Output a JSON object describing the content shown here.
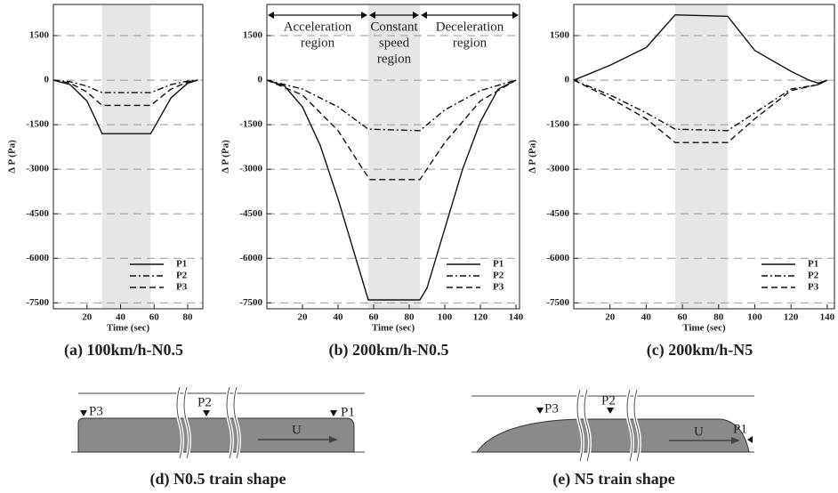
{
  "chart_data": [
    {
      "type": "line",
      "caption": "(a) 100km/h-N0.5",
      "x_label": "Time (sec)",
      "y_label": "Δ P (Pa)",
      "xlim": [
        0,
        89
      ],
      "ylim": [
        -7700,
        2550
      ],
      "xticks": [
        20,
        40,
        60,
        80
      ],
      "yticks": [
        1500,
        0,
        -1500,
        -3000,
        -4500,
        -6000,
        -7500
      ],
      "grid": true,
      "shade": [
        29,
        58
      ],
      "legend": "lower right",
      "series": [
        {
          "name": "P1",
          "color": "#111",
          "style": "solid",
          "x": [
            0,
            10,
            20,
            25,
            29,
            58,
            62,
            70,
            80,
            86
          ],
          "values": [
            0,
            -150,
            -700,
            -1300,
            -1800,
            -1800,
            -1400,
            -600,
            -100,
            0
          ]
        },
        {
          "name": "P2",
          "color": "#111",
          "style": "dashdot",
          "x": [
            0,
            10,
            20,
            29,
            58,
            70,
            80,
            86
          ],
          "values": [
            0,
            -50,
            -200,
            -420,
            -420,
            -150,
            -30,
            0
          ]
        },
        {
          "name": "P3",
          "color": "#111",
          "style": "dashed",
          "x": [
            0,
            10,
            20,
            29,
            58,
            70,
            80,
            86
          ],
          "values": [
            0,
            -100,
            -400,
            -850,
            -850,
            -300,
            -60,
            0
          ]
        }
      ]
    },
    {
      "type": "line",
      "caption": "(b) 200km/h-N0.5",
      "x_label": "Time (sec)",
      "y_label": "Δ P (Pa)",
      "xlim": [
        0,
        142
      ],
      "ylim": [
        -7700,
        2550
      ],
      "xticks": [
        20,
        40,
        60,
        80,
        100,
        120,
        140
      ],
      "yticks": [
        1500,
        0,
        -1500,
        -3000,
        -4500,
        -6000,
        -7500
      ],
      "grid": true,
      "shade": [
        57,
        86
      ],
      "legend": "lower right",
      "regions": [
        [
          "Acceleration",
          "region"
        ],
        [
          "Constant",
          "speed",
          "region"
        ],
        [
          "Deceleration",
          "region"
        ]
      ],
      "series": [
        {
          "name": "P1",
          "color": "#111",
          "style": "solid",
          "x": [
            0,
            10,
            20,
            30,
            40,
            50,
            57,
            86,
            90,
            100,
            110,
            120,
            130,
            140
          ],
          "values": [
            0,
            -200,
            -900,
            -2200,
            -4000,
            -6000,
            -7400,
            -7400,
            -7000,
            -5000,
            -3000,
            -1400,
            -300,
            0
          ]
        },
        {
          "name": "P2",
          "color": "#111",
          "style": "dashdot",
          "x": [
            0,
            20,
            40,
            57,
            86,
            100,
            120,
            140
          ],
          "values": [
            0,
            -300,
            -900,
            -1650,
            -1700,
            -1000,
            -350,
            0
          ]
        },
        {
          "name": "P3",
          "color": "#111",
          "style": "dashed",
          "x": [
            0,
            20,
            40,
            55,
            58,
            86,
            100,
            120,
            140
          ],
          "values": [
            0,
            -500,
            -1700,
            -3100,
            -3350,
            -3350,
            -2100,
            -700,
            0
          ]
        }
      ]
    },
    {
      "type": "line",
      "caption": "(c) 200km/h-N5",
      "x_label": "Time (sec)",
      "y_label": "Δ P (Pa)",
      "xlim": [
        0,
        144
      ],
      "ylim": [
        -7700,
        2550
      ],
      "xticks": [
        20,
        40,
        60,
        80,
        100,
        120,
        140
      ],
      "yticks": [
        1500,
        0,
        -1500,
        -3000,
        -4500,
        -6000,
        -7500
      ],
      "grid": true,
      "shade": [
        56,
        85
      ],
      "legend": "lower right",
      "series": [
        {
          "name": "P1",
          "color": "#111",
          "style": "solid",
          "x": [
            0,
            20,
            40,
            56,
            85,
            100,
            120,
            130,
            135,
            140
          ],
          "values": [
            0,
            500,
            1100,
            2200,
            2150,
            1000,
            300,
            0,
            -100,
            0
          ]
        },
        {
          "name": "P2",
          "color": "#111",
          "style": "dashdot",
          "x": [
            0,
            20,
            40,
            56,
            85,
            100,
            120,
            135,
            140
          ],
          "values": [
            0,
            -500,
            -1100,
            -1650,
            -1700,
            -1100,
            -300,
            -150,
            0
          ]
        },
        {
          "name": "P3",
          "color": "#111",
          "style": "dashed",
          "x": [
            0,
            20,
            40,
            56,
            85,
            100,
            120,
            135,
            140
          ],
          "values": [
            0,
            -600,
            -1300,
            -2100,
            -2100,
            -1300,
            -350,
            -150,
            0
          ]
        }
      ]
    }
  ],
  "diagrams": [
    {
      "caption": "(d) N0.5 train shape",
      "labels": [
        "P3",
        "P2",
        "P1",
        "U"
      ]
    },
    {
      "caption": "(e) N5 train shape",
      "labels": [
        "P3",
        "P2",
        "P1",
        "U"
      ]
    }
  ]
}
